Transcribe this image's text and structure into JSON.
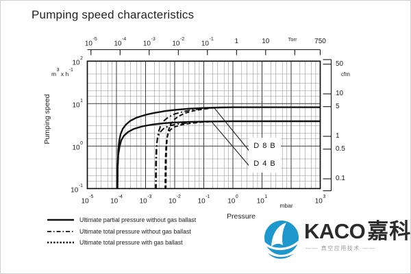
{
  "title": "Pumping speed characteristics",
  "colors": {
    "ink": "#111111",
    "grid_major": "#3a3a3a",
    "grid_minor": "#8c8c8c",
    "logo_blue": "#1e97cd",
    "logo_text": "#2b2b2b",
    "logo_tagline_gray": "#9a9a9a"
  },
  "chart_data": {
    "type": "line",
    "title": "Pumping speed characteristics",
    "xlabel": "Pressure",
    "ylabel": "Pumping speed",
    "x_unit_bottom": "mbar",
    "x_unit_top": "Torr",
    "y_unit_left": "m^3 x h^-1",
    "y_unit_right": "cfm",
    "xlim_mbar": [
      1e-05,
      1000.0
    ],
    "ylim_m3h": [
      0.1,
      100
    ],
    "grid": {
      "x_minor_multiples": [
        2,
        3,
        5,
        7
      ],
      "y_minor_multiples": [
        1.5,
        2,
        3,
        5
      ]
    },
    "bottom_ticks_mbar": [
      {
        "v": 1e-05,
        "label": "10^-5"
      },
      {
        "v": 0.0001,
        "label": "10^-4"
      },
      {
        "v": 0.001,
        "label": "10^-3"
      },
      {
        "v": 0.01,
        "label": "10^-2"
      },
      {
        "v": 0.1,
        "label": "10^-1"
      },
      {
        "v": 1,
        "label": "10^0"
      },
      {
        "v": 10,
        "label": "10^1"
      },
      {
        "v": 100,
        "label": ""
      },
      {
        "v": 1000,
        "label": "10^3"
      }
    ],
    "top_ticks_torr": [
      {
        "v": 1e-05,
        "label": "10^-5"
      },
      {
        "v": 0.0001,
        "label": "10^-4"
      },
      {
        "v": 0.001,
        "label": "10^-3"
      },
      {
        "v": 0.01,
        "label": "10^-2"
      },
      {
        "v": 0.1,
        "label": "10^-1"
      },
      {
        "v": 1,
        "label": "1"
      },
      {
        "v": 10,
        "label": "10"
      },
      {
        "v": 100,
        "label": ""
      },
      {
        "v": 750,
        "label": "750"
      }
    ],
    "left_ticks_m3h": [
      {
        "v": 100,
        "label": "10^2"
      },
      {
        "v": 10,
        "label": "10^1"
      },
      {
        "v": 1,
        "label": "10^0"
      },
      {
        "v": 0.1,
        "label": "10^-1"
      }
    ],
    "right_ticks_cfm": [
      {
        "v": 50,
        "label": "50"
      },
      {
        "v": 10,
        "label": "10"
      },
      {
        "v": 5,
        "label": "5"
      },
      {
        "v": 1,
        "label": "1"
      },
      {
        "v": 0.5,
        "label": "0.5"
      },
      {
        "v": 0.1,
        "label": "0.1"
      }
    ],
    "series": [
      {
        "pump": "D 8 B",
        "style": "solid",
        "meaning": "Ultimate partial pressure without gas ballast",
        "points": [
          [
            0.000108,
            0.095
          ],
          [
            0.00011,
            0.35
          ],
          [
            0.000115,
            0.8
          ],
          [
            0.000125,
            1.35
          ],
          [
            0.00014,
            1.95
          ],
          [
            0.000165,
            2.55
          ],
          [
            0.00021,
            3.2
          ],
          [
            0.0003,
            3.95
          ],
          [
            0.0005,
            4.7
          ],
          [
            0.001,
            5.45
          ],
          [
            0.002,
            6.05
          ],
          [
            0.005,
            6.75
          ],
          [
            0.01,
            7.1
          ],
          [
            0.03,
            7.6
          ],
          [
            0.1,
            7.9
          ],
          [
            0.3,
            8.1
          ],
          [
            1,
            8.2
          ],
          [
            1000,
            8.2
          ]
        ]
      },
      {
        "pump": "D 4 B",
        "style": "solid",
        "meaning": "Ultimate partial pressure without gas ballast",
        "points": [
          [
            0.000108,
            0.095
          ],
          [
            0.00011,
            0.3
          ],
          [
            0.000116,
            0.62
          ],
          [
            0.000128,
            0.98
          ],
          [
            0.000145,
            1.35
          ],
          [
            0.00018,
            1.75
          ],
          [
            0.00025,
            2.15
          ],
          [
            0.0004,
            2.55
          ],
          [
            0.00075,
            2.9
          ],
          [
            0.0016,
            3.2
          ],
          [
            0.004,
            3.45
          ],
          [
            0.01,
            3.6
          ],
          [
            0.03,
            3.72
          ],
          [
            0.1,
            3.8
          ],
          [
            1,
            3.85
          ],
          [
            1000,
            3.85
          ]
        ]
      },
      {
        "pump": "D 8 B",
        "style": "dash-dot",
        "meaning": "Ultimate total pressure without gas ballast",
        "points": [
          [
            0.0023,
            0.095
          ],
          [
            0.00234,
            0.45
          ],
          [
            0.00242,
            0.95
          ],
          [
            0.00255,
            1.55
          ],
          [
            0.0028,
            2.2
          ],
          [
            0.0033,
            3.0
          ],
          [
            0.0042,
            3.9
          ],
          [
            0.006,
            4.8
          ],
          [
            0.01,
            5.7
          ],
          [
            0.02,
            6.5
          ],
          [
            0.045,
            7.2
          ],
          [
            0.1,
            7.7
          ],
          [
            0.25,
            8.05
          ],
          [
            0.5,
            8.2
          ]
        ]
      },
      {
        "pump": "D 4 B",
        "style": "dash-dot",
        "meaning": "Ultimate total pressure without gas ballast",
        "points": [
          [
            0.0022,
            0.095
          ],
          [
            0.00224,
            0.4
          ],
          [
            0.00232,
            0.8
          ],
          [
            0.00245,
            1.25
          ],
          [
            0.0027,
            1.7
          ],
          [
            0.0032,
            2.15
          ],
          [
            0.0042,
            2.6
          ],
          [
            0.0065,
            3.0
          ],
          [
            0.012,
            3.3
          ],
          [
            0.03,
            3.55
          ],
          [
            0.08,
            3.75
          ],
          [
            0.18,
            3.82
          ]
        ]
      },
      {
        "pump": "D 8 B",
        "style": "dashed",
        "meaning": "Ultimate total pressure with gas ballast",
        "points": [
          [
            0.005,
            0.095
          ],
          [
            0.0051,
            0.5
          ],
          [
            0.0053,
            1.05
          ],
          [
            0.0056,
            1.7
          ],
          [
            0.0062,
            2.45
          ],
          [
            0.0073,
            3.3
          ],
          [
            0.0095,
            4.2
          ],
          [
            0.014,
            5.1
          ],
          [
            0.023,
            6.0
          ],
          [
            0.045,
            6.8
          ],
          [
            0.09,
            7.4
          ],
          [
            0.2,
            7.9
          ],
          [
            0.4,
            8.1
          ],
          [
            0.6,
            8.2
          ]
        ]
      },
      {
        "pump": "D 4 B",
        "style": "dashed",
        "meaning": "Ultimate total pressure with gas ballast",
        "points": [
          [
            0.0047,
            0.095
          ],
          [
            0.0048,
            0.45
          ],
          [
            0.005,
            0.9
          ],
          [
            0.0053,
            1.4
          ],
          [
            0.0059,
            1.9
          ],
          [
            0.007,
            2.4
          ],
          [
            0.0095,
            2.8
          ],
          [
            0.016,
            3.15
          ],
          [
            0.035,
            3.45
          ],
          [
            0.08,
            3.65
          ],
          [
            0.2,
            3.8
          ],
          [
            0.4,
            3.85
          ]
        ]
      }
    ],
    "annotations": [
      {
        "label": "D 8 B",
        "attach_mbar": 0.23,
        "attach_m3h": 7.9
      },
      {
        "label": "D 4 B",
        "attach_mbar": 0.19,
        "attach_m3h": 3.7
      }
    ],
    "legend_position": "bottom-left"
  },
  "legend": {
    "items": [
      {
        "style": "solid",
        "label": "Ultimate partial pressure without gas ballast"
      },
      {
        "style": "dash-dot",
        "label": "Ultimate total pressure without gas ballast"
      },
      {
        "style": "dashed-dense",
        "label": "Ultimate total pressure with gas ballast"
      }
    ]
  },
  "logo": {
    "name_latin": "KACO",
    "name_cn": "嘉科",
    "tagline": "—— 真空应用技术 ——"
  }
}
